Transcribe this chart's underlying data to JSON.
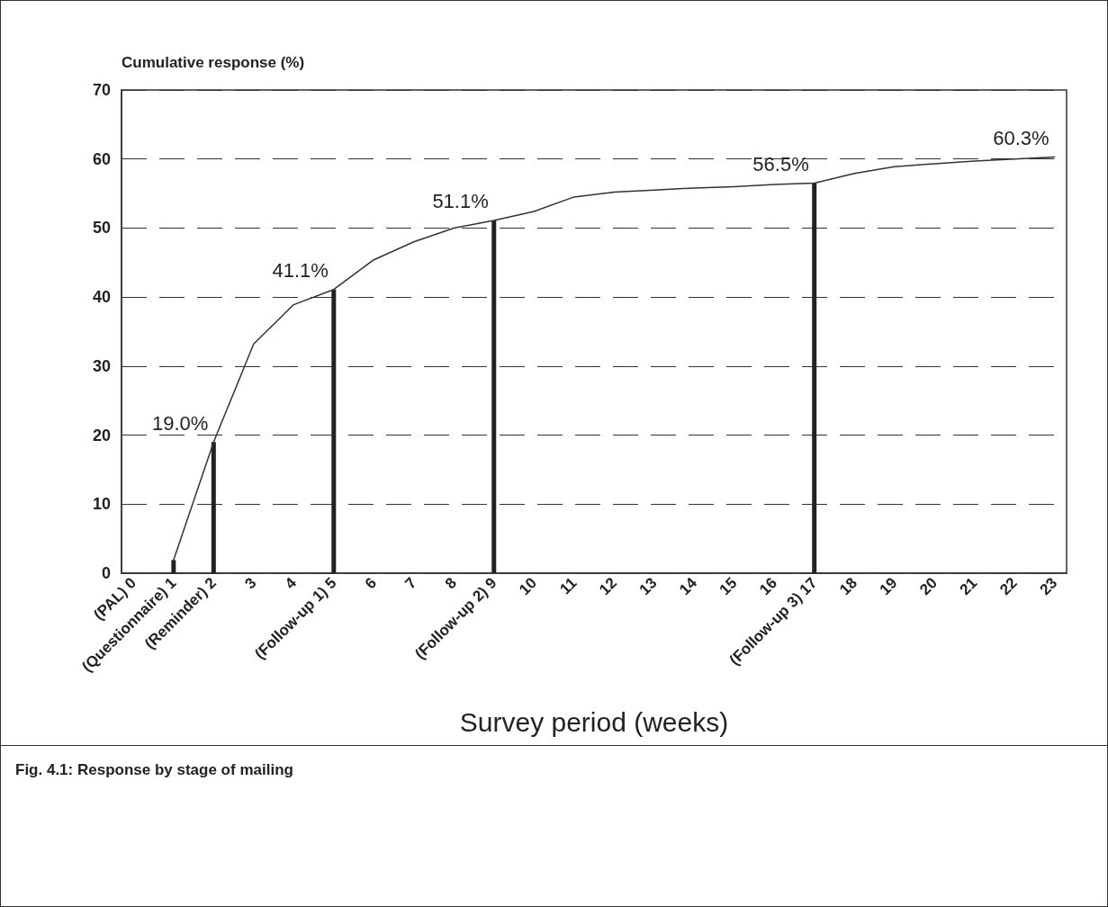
{
  "chart_data": {
    "type": "line",
    "title": "Fig. 4.1: Response by stage of mailing",
    "xlabel": "Survey period (weeks)",
    "ylabel": "Cumulative response (%)",
    "xlim": [
      -0.3,
      23.3
    ],
    "xticks": [
      {
        "value": 0,
        "label": "(PAL) 0"
      },
      {
        "value": 1,
        "label": "(Questionnaire) 1"
      },
      {
        "value": 2,
        "label": "(Reminder) 2"
      },
      3,
      4,
      {
        "value": 5,
        "label": "(Follow-up 1) 5"
      },
      6,
      7,
      8,
      {
        "value": 9,
        "label": "(Follow-up 2) 9"
      },
      10,
      11,
      12,
      13,
      14,
      15,
      16,
      {
        "value": 17,
        "label": "(Follow-up 3) 17"
      },
      18,
      19,
      20,
      21,
      22,
      23
    ],
    "ylim": [
      0,
      70
    ],
    "yticks": [
      0,
      10,
      20,
      30,
      40,
      50,
      60,
      70
    ],
    "grid": "y",
    "line_style": "solid",
    "marker": "none",
    "series": [
      {
        "color": "#333333",
        "x": [
          1,
          2,
          3,
          4,
          5,
          6,
          7,
          8,
          9,
          10,
          11,
          12,
          13,
          14,
          15,
          16,
          17,
          18,
          19,
          20,
          21,
          22,
          23
        ],
        "values": [
          1.9,
          19.0,
          33.2,
          38.9,
          41.1,
          45.4,
          48.0,
          50.0,
          51.1,
          52.4,
          54.5,
          55.2,
          55.5,
          55.8,
          56.0,
          56.3,
          56.5,
          57.9,
          58.9,
          59.3,
          59.7,
          60.0,
          60.3
        ]
      },
      {
        "type": "bar",
        "color": "#222222",
        "x": [
          1,
          2,
          5,
          9,
          17
        ],
        "values": [
          1.9,
          19.0,
          41.1,
          51.1,
          56.5
        ]
      }
    ],
    "annotations": [
      {
        "text": "19.0%",
        "x": 2,
        "y": 19.0
      },
      {
        "text": "41.1%",
        "x": 5,
        "y": 41.1
      },
      {
        "text": "51.1%",
        "x": 9,
        "y": 51.1
      },
      {
        "text": "56.5%",
        "x": 17,
        "y": 56.5
      },
      {
        "text": "60.3%",
        "x": 23,
        "y": 60.3
      }
    ]
  }
}
